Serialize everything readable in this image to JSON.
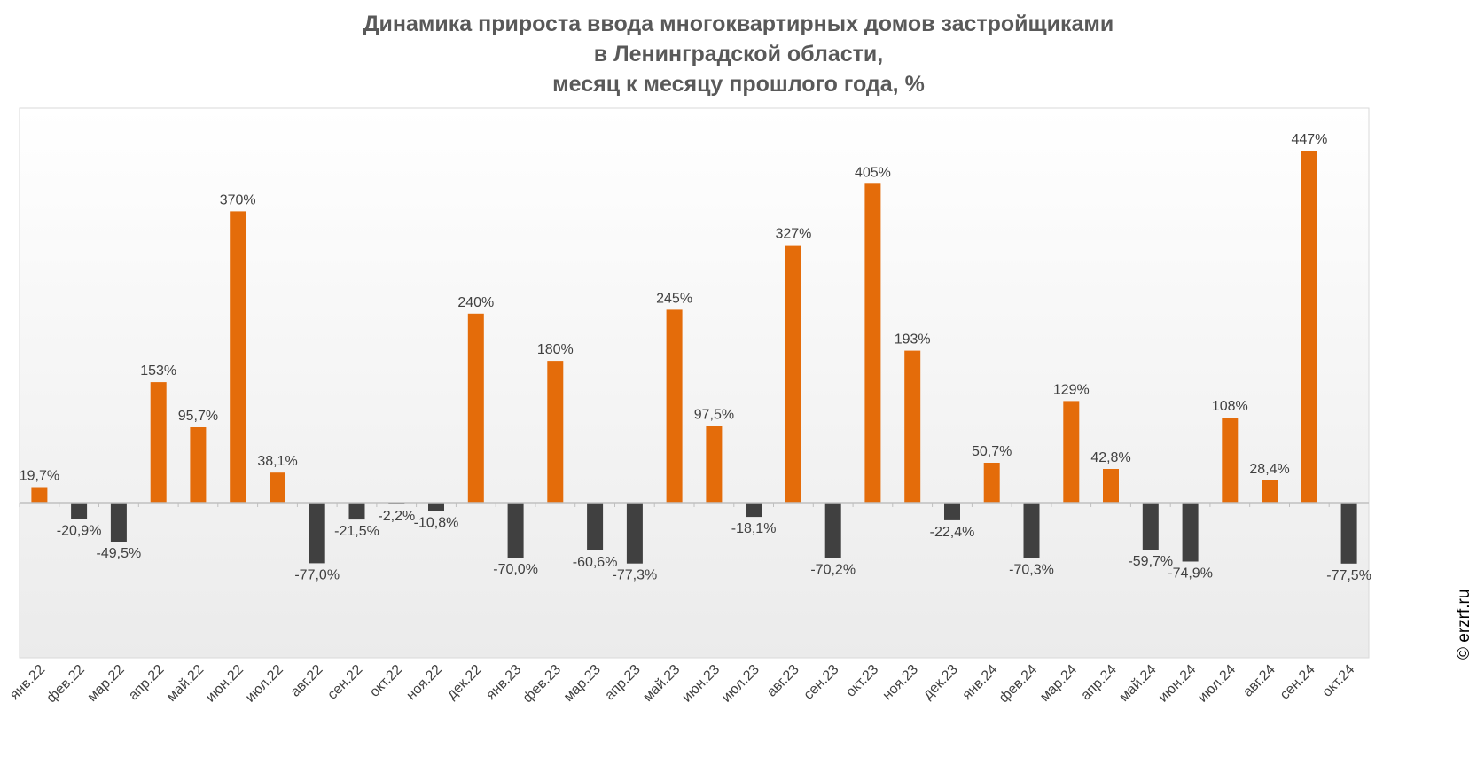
{
  "chart_data": {
    "type": "bar",
    "title": [
      "Динамика прироста ввода многоквартирных домов застройщиками",
      "в Ленинградской области,",
      "месяц к месяцу прошлого года, %"
    ],
    "xlabel": "",
    "ylabel": "",
    "categories": [
      "янв.22",
      "фев.22",
      "мар.22",
      "апр.22",
      "май.22",
      "июн.22",
      "июл.22",
      "авг.22",
      "сен.22",
      "окт.22",
      "ноя.22",
      "дек.22",
      "янв.23",
      "фев.23",
      "мар.23",
      "апр.23",
      "май.23",
      "июн.23",
      "июл.23",
      "авг.23",
      "сен.23",
      "окт.23",
      "ноя.23",
      "дек.23",
      "янв.24",
      "фев.24",
      "мар.24",
      "апр.24",
      "май.24",
      "июн.24",
      "июл.24",
      "авг.24",
      "сен.24",
      "окт.24"
    ],
    "values": [
      19.7,
      -20.9,
      -49.5,
      153,
      95.7,
      370,
      38.1,
      -77.0,
      -21.5,
      -2.2,
      -10.8,
      240,
      -70.0,
      180,
      -60.6,
      -77.3,
      245,
      97.5,
      -18.1,
      327,
      -70.2,
      405,
      193,
      -22.4,
      50.7,
      -70.3,
      129,
      42.8,
      -59.7,
      -74.9,
      108,
      28.4,
      447,
      -77.5
    ],
    "value_labels": [
      "19,7%",
      "-20,9%",
      "-49,5%",
      "153%",
      "95,7%",
      "370%",
      "38,1%",
      "-77,0%",
      "-21,5%",
      "-2,2%",
      "-10,8%",
      "240%",
      "-70,0%",
      "180%",
      "-60,6%",
      "-77,3%",
      "245%",
      "97,5%",
      "-18,1%",
      "327%",
      "-70,2%",
      "405%",
      "193%",
      "-22,4%",
      "50,7%",
      "-70,3%",
      "129%",
      "42,8%",
      "-59,7%",
      "-74,9%",
      "108%",
      "28,4%",
      "447%",
      "-77,5%"
    ],
    "ylim": [
      -200,
      500
    ],
    "grid": false,
    "legend": "none",
    "colors": {
      "positive": "#E46C0A",
      "negative": "#404040",
      "axis": "#BFBFBF",
      "label": "#404040",
      "title": "#595959",
      "plot_top": "#FFFFFF",
      "plot_bottom": "#EBEBEB"
    }
  },
  "watermark": {
    "text": "© erzrf.ru",
    "color": "#000000"
  }
}
